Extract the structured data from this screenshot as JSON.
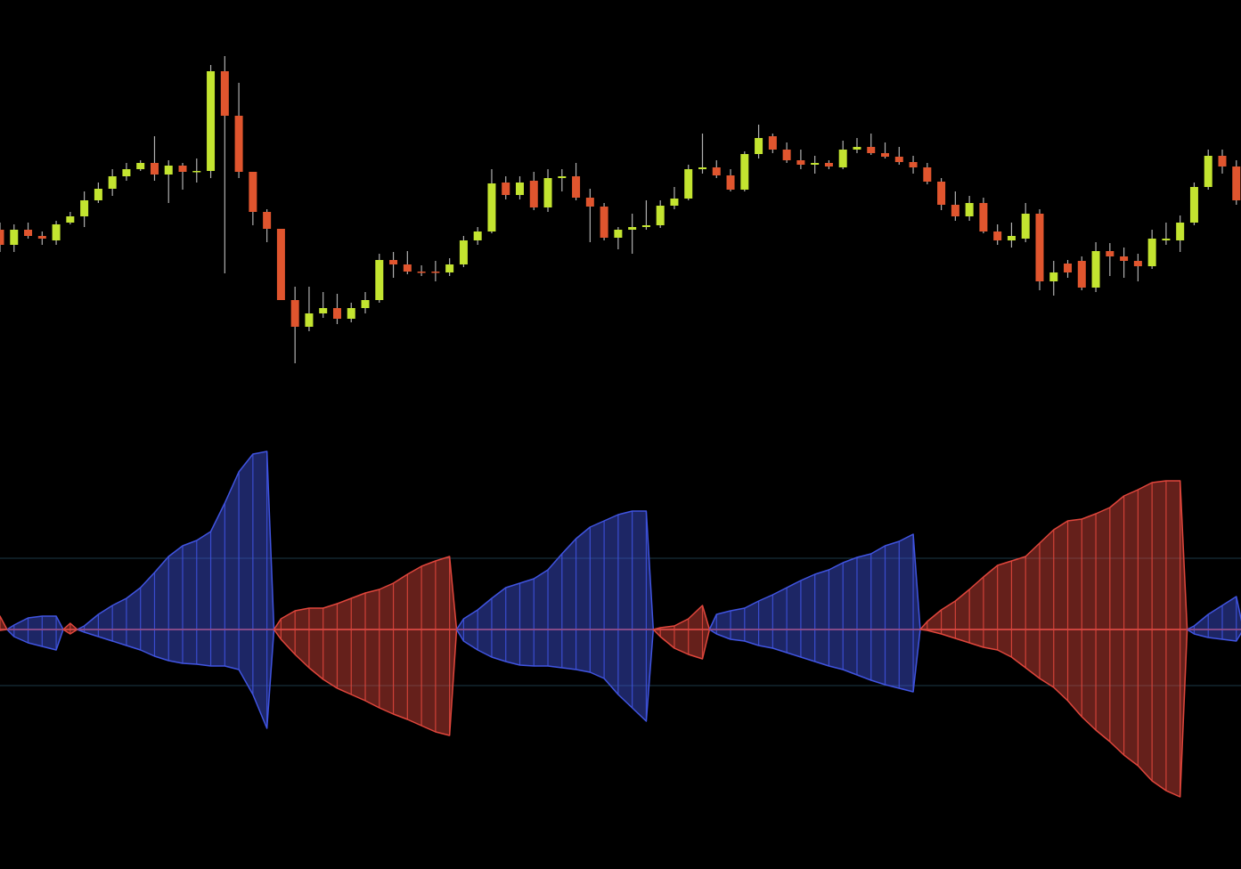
{
  "chart_data": [
    {
      "type": "candlestick",
      "up_color": "#c3e430",
      "down_color": "#e0552e",
      "wick_color": "#b0b0b0",
      "ylim": [
        20,
        420
      ],
      "open": [
        192,
        175,
        192,
        185,
        180,
        200,
        207,
        225,
        238,
        252,
        260,
        267,
        254,
        264,
        258,
        258,
        370,
        320,
        257,
        212,
        193,
        113,
        83,
        98,
        104,
        92,
        104,
        113,
        158,
        153,
        145,
        145,
        144,
        153,
        180,
        190,
        245,
        231,
        247,
        217,
        250,
        252,
        228,
        218,
        183,
        192,
        195,
        197,
        219,
        227,
        260,
        262,
        253,
        237,
        277,
        297,
        282,
        270,
        265,
        267,
        262,
        282,
        285,
        278,
        274,
        268,
        262,
        246,
        220,
        207,
        222,
        190,
        180,
        182,
        210,
        134,
        154,
        157,
        127,
        168,
        162,
        157,
        151,
        180,
        180,
        200,
        240,
        275,
        263
      ],
      "high": [
        200,
        198,
        200,
        190,
        202,
        212,
        235,
        245,
        260,
        267,
        270,
        297,
        270,
        267,
        272,
        377,
        387,
        357,
        257,
        215,
        193,
        128,
        128,
        122,
        120,
        110,
        122,
        165,
        167,
        168,
        152,
        157,
        160,
        185,
        195,
        260,
        252,
        252,
        257,
        260,
        260,
        267,
        238,
        222,
        195,
        210,
        225,
        225,
        240,
        265,
        300,
        270,
        260,
        280,
        310,
        300,
        290,
        282,
        275,
        270,
        292,
        295,
        300,
        290,
        285,
        275,
        267,
        250,
        235,
        230,
        228,
        198,
        200,
        222,
        215,
        157,
        158,
        162,
        178,
        177,
        172,
        165,
        192,
        200,
        208,
        245,
        282,
        282,
        270
      ],
      "low": [
        167,
        167,
        182,
        175,
        175,
        198,
        195,
        222,
        230,
        247,
        258,
        247,
        222,
        237,
        245,
        250,
        143,
        250,
        197,
        178,
        113,
        42,
        78,
        93,
        86,
        88,
        98,
        110,
        138,
        142,
        140,
        134,
        140,
        150,
        175,
        188,
        226,
        226,
        214,
        212,
        235,
        225,
        178,
        180,
        170,
        165,
        192,
        194,
        215,
        225,
        255,
        250,
        235,
        235,
        272,
        278,
        267,
        260,
        255,
        260,
        260,
        278,
        276,
        272,
        265,
        255,
        243,
        214,
        202,
        202,
        188,
        175,
        172,
        178,
        124,
        118,
        138,
        124,
        122,
        140,
        138,
        134,
        148,
        175,
        167,
        197,
        237,
        255,
        220
      ],
      "close": [
        175,
        192,
        185,
        182,
        198,
        207,
        225,
        238,
        252,
        260,
        267,
        254,
        264,
        257,
        258,
        370,
        320,
        257,
        212,
        193,
        113,
        83,
        98,
        104,
        92,
        104,
        113,
        158,
        153,
        145,
        144,
        144,
        153,
        180,
        190,
        244,
        231,
        245,
        217,
        250,
        252,
        228,
        218,
        183,
        192,
        195,
        197,
        219,
        227,
        260,
        262,
        253,
        237,
        277,
        295,
        282,
        270,
        265,
        267,
        263,
        282,
        285,
        278,
        274,
        268,
        262,
        246,
        220,
        207,
        222,
        190,
        180,
        185,
        210,
        134,
        144,
        144,
        127,
        168,
        162,
        157,
        151,
        182,
        182,
        200,
        240,
        275,
        263,
        225
      ]
    },
    {
      "type": "area",
      "ylim": [
        -223,
        227
      ],
      "levels": [
        80,
        -63
      ],
      "series": [
        {
          "values": [
            15,
            5,
            13,
            15,
            15,
            7,
            4,
            17,
            27,
            35,
            47,
            64,
            82,
            94,
            100,
            110,
            142,
            177,
            197,
            200,
            12,
            21,
            24,
            24,
            29,
            35,
            41,
            45,
            52,
            62,
            71,
            77,
            82,
            12,
            22,
            35,
            47,
            52,
            57,
            67,
            85,
            102,
            115,
            122,
            129,
            133,
            133,
            2,
            4,
            12,
            27,
            17,
            21,
            24,
            32,
            39,
            47,
            55,
            62,
            67,
            75,
            81,
            85,
            94,
            99,
            107,
            9,
            22,
            32,
            45,
            59,
            72,
            77,
            82,
            97,
            112,
            122,
            124,
            130,
            137,
            150,
            157,
            165,
            167,
            167,
            4,
            17,
            27,
            37
          ]
        },
        {
          "values": [
            -1,
            -8,
            -15,
            -19,
            -23,
            -5,
            -3,
            -8,
            -13,
            -18,
            -23,
            -30,
            -35,
            -38,
            -39,
            -41,
            -41,
            -45,
            -73,
            -111,
            -11,
            -28,
            -43,
            -56,
            -66,
            -73,
            -80,
            -88,
            -95,
            -101,
            -108,
            -115,
            -119,
            -13,
            -23,
            -31,
            -36,
            -40,
            -41,
            -41,
            -43,
            -45,
            -48,
            -55,
            -73,
            -88,
            -103,
            -8,
            -21,
            -28,
            -33,
            -5,
            -11,
            -13,
            -18,
            -21,
            -26,
            -31,
            -36,
            -41,
            -45,
            -51,
            -57,
            -62,
            -66,
            -70,
            -1,
            -5,
            -10,
            -15,
            -20,
            -23,
            -31,
            -43,
            -55,
            -65,
            -80,
            -98,
            -113,
            -126,
            -141,
            -153,
            -170,
            -181,
            -188,
            -5,
            -9,
            -11,
            -13
          ]
        }
      ],
      "colors": [
        "#e0463c",
        "#4054e0",
        "#4054e0",
        "#4054e0",
        "#4054e0",
        "#e0463c",
        "#4054e0",
        "#4054e0",
        "#4054e0",
        "#4054e0",
        "#4054e0",
        "#4054e0",
        "#4054e0",
        "#4054e0",
        "#4054e0",
        "#4054e0",
        "#4054e0",
        "#4054e0",
        "#4054e0",
        "#4054e0",
        "#e0463c",
        "#e0463c",
        "#e0463c",
        "#e0463c",
        "#e0463c",
        "#e0463c",
        "#e0463c",
        "#e0463c",
        "#e0463c",
        "#e0463c",
        "#e0463c",
        "#e0463c",
        "#e0463c",
        "#4054e0",
        "#4054e0",
        "#4054e0",
        "#4054e0",
        "#4054e0",
        "#4054e0",
        "#4054e0",
        "#4054e0",
        "#4054e0",
        "#4054e0",
        "#4054e0",
        "#4054e0",
        "#4054e0",
        "#4054e0",
        "#e0463c",
        "#e0463c",
        "#e0463c",
        "#e0463c",
        "#4054e0",
        "#4054e0",
        "#4054e0",
        "#4054e0",
        "#4054e0",
        "#4054e0",
        "#4054e0",
        "#4054e0",
        "#4054e0",
        "#4054e0",
        "#4054e0",
        "#4054e0",
        "#4054e0",
        "#4054e0",
        "#4054e0",
        "#e0463c",
        "#e0463c",
        "#e0463c",
        "#e0463c",
        "#e0463c",
        "#e0463c",
        "#e0463c",
        "#e0463c",
        "#e0463c",
        "#e0463c",
        "#e0463c",
        "#e0463c",
        "#e0463c",
        "#e0463c",
        "#e0463c",
        "#e0463c",
        "#e0463c",
        "#e0463c",
        "#e0463c",
        "#4054e0",
        "#4054e0",
        "#4054e0",
        "#4054e0"
      ]
    }
  ]
}
